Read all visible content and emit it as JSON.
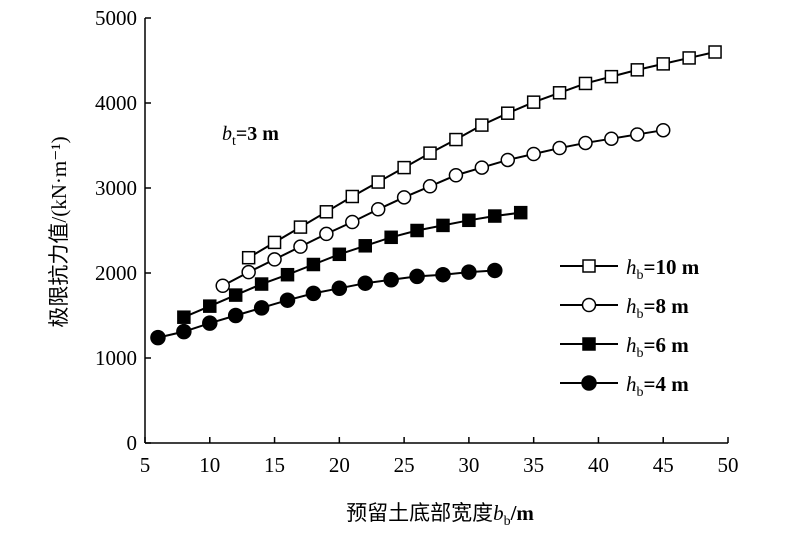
{
  "chart_data": {
    "type": "line",
    "xlabel": "预留土底部宽度",
    "xlabel_var": "b",
    "xlabel_sub": "b",
    "xlabel_unit": "/m",
    "ylabel": "极限抗力值/(kN·m⁻¹)",
    "xlim": [
      5,
      50
    ],
    "ylim": [
      0,
      5000
    ],
    "xticks": [
      5,
      10,
      15,
      20,
      25,
      30,
      35,
      40,
      45,
      50
    ],
    "yticks": [
      0,
      1000,
      2000,
      3000,
      4000,
      5000
    ],
    "annotation": {
      "var": "b",
      "sub": "t",
      "text": "=3 m"
    },
    "legend_position": "right",
    "series": [
      {
        "name": "h_b=10 m",
        "var": "h",
        "sub": "b",
        "rest": "=10 m",
        "marker": "square-open",
        "x": [
          13,
          15,
          17,
          19,
          21,
          23,
          25,
          27,
          29,
          31,
          33,
          35,
          37,
          39,
          41,
          43,
          45,
          47,
          49
        ],
        "y": [
          2180,
          2360,
          2540,
          2720,
          2900,
          3070,
          3240,
          3410,
          3570,
          3740,
          3880,
          4010,
          4120,
          4230,
          4310,
          4390,
          4460,
          4530,
          4600
        ]
      },
      {
        "name": "h_b=8 m",
        "var": "h",
        "sub": "b",
        "rest": "=8 m",
        "marker": "circle-open",
        "x": [
          11,
          13,
          15,
          17,
          19,
          21,
          23,
          25,
          27,
          29,
          31,
          33,
          35,
          37,
          39,
          41,
          43,
          45
        ],
        "y": [
          1850,
          2010,
          2160,
          2310,
          2460,
          2600,
          2750,
          2890,
          3020,
          3150,
          3240,
          3330,
          3400,
          3470,
          3530,
          3580,
          3630,
          3680
        ]
      },
      {
        "name": "h_b=6 m",
        "var": "h",
        "sub": "b",
        "rest": "=6 m",
        "marker": "square-filled",
        "x": [
          8,
          10,
          12,
          14,
          16,
          18,
          20,
          22,
          24,
          26,
          28,
          30,
          32,
          34
        ],
        "y": [
          1480,
          1610,
          1740,
          1870,
          1980,
          2100,
          2220,
          2320,
          2420,
          2500,
          2560,
          2620,
          2670,
          2710
        ]
      },
      {
        "name": "h_b=4 m",
        "var": "h",
        "sub": "b",
        "rest": "=4 m",
        "marker": "circle-filled",
        "x": [
          6,
          8,
          10,
          12,
          14,
          16,
          18,
          20,
          22,
          24,
          26,
          28,
          30,
          32
        ],
        "y": [
          1240,
          1310,
          1410,
          1500,
          1590,
          1680,
          1760,
          1820,
          1880,
          1920,
          1960,
          1980,
          2010,
          2030
        ]
      }
    ]
  }
}
